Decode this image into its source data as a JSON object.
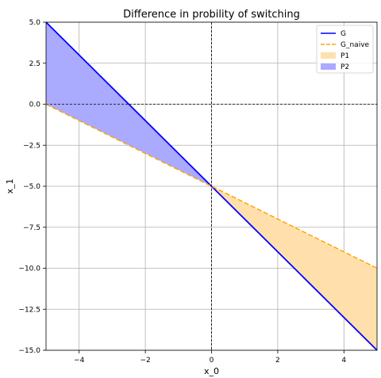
{
  "chart_data": {
    "type": "line",
    "title": "Difference in probility of switching",
    "xlabel": "x_0",
    "ylabel": "x_1",
    "xlim": [
      -5,
      5
    ],
    "ylim": [
      -15,
      5
    ],
    "x_ticks": [
      -4,
      -2,
      0,
      2,
      4
    ],
    "x_tick_labels": [
      "−4",
      "−2",
      "0",
      "2",
      "4"
    ],
    "y_ticks": [
      5,
      2.5,
      0,
      -2.5,
      -5,
      -7.5,
      -10,
      -12.5,
      -15
    ],
    "y_tick_labels": [
      "5.0",
      "2.5",
      "0.0",
      "−2.5",
      "−5.0",
      "−7.5",
      "−10.0",
      "−12.5",
      "−15.0"
    ],
    "grid": true,
    "legend_position": "top-right",
    "series": [
      {
        "name": "G",
        "kind": "line",
        "style": "solid",
        "color": "#0000ff",
        "x": [
          -5,
          5
        ],
        "y": [
          5,
          -15
        ]
      },
      {
        "name": "G_naive",
        "kind": "line",
        "style": "dashed",
        "color": "#ffa500",
        "x": [
          -5,
          5
        ],
        "y": [
          0,
          -10
        ]
      },
      {
        "name": "P1",
        "kind": "fill",
        "color": "#ffe0ad",
        "x": [
          0,
          5,
          5
        ],
        "y": [
          -5,
          -10,
          -15
        ]
      },
      {
        "name": "P2",
        "kind": "fill",
        "color": "#aaaaff",
        "x": [
          -5,
          -5,
          0
        ],
        "y": [
          5,
          0,
          -5
        ]
      }
    ],
    "reference_lines": [
      {
        "orientation": "horizontal",
        "value": 0,
        "style": "dashed",
        "color": "#000000"
      },
      {
        "orientation": "vertical",
        "value": 0,
        "style": "dashed",
        "color": "#000000"
      }
    ]
  }
}
